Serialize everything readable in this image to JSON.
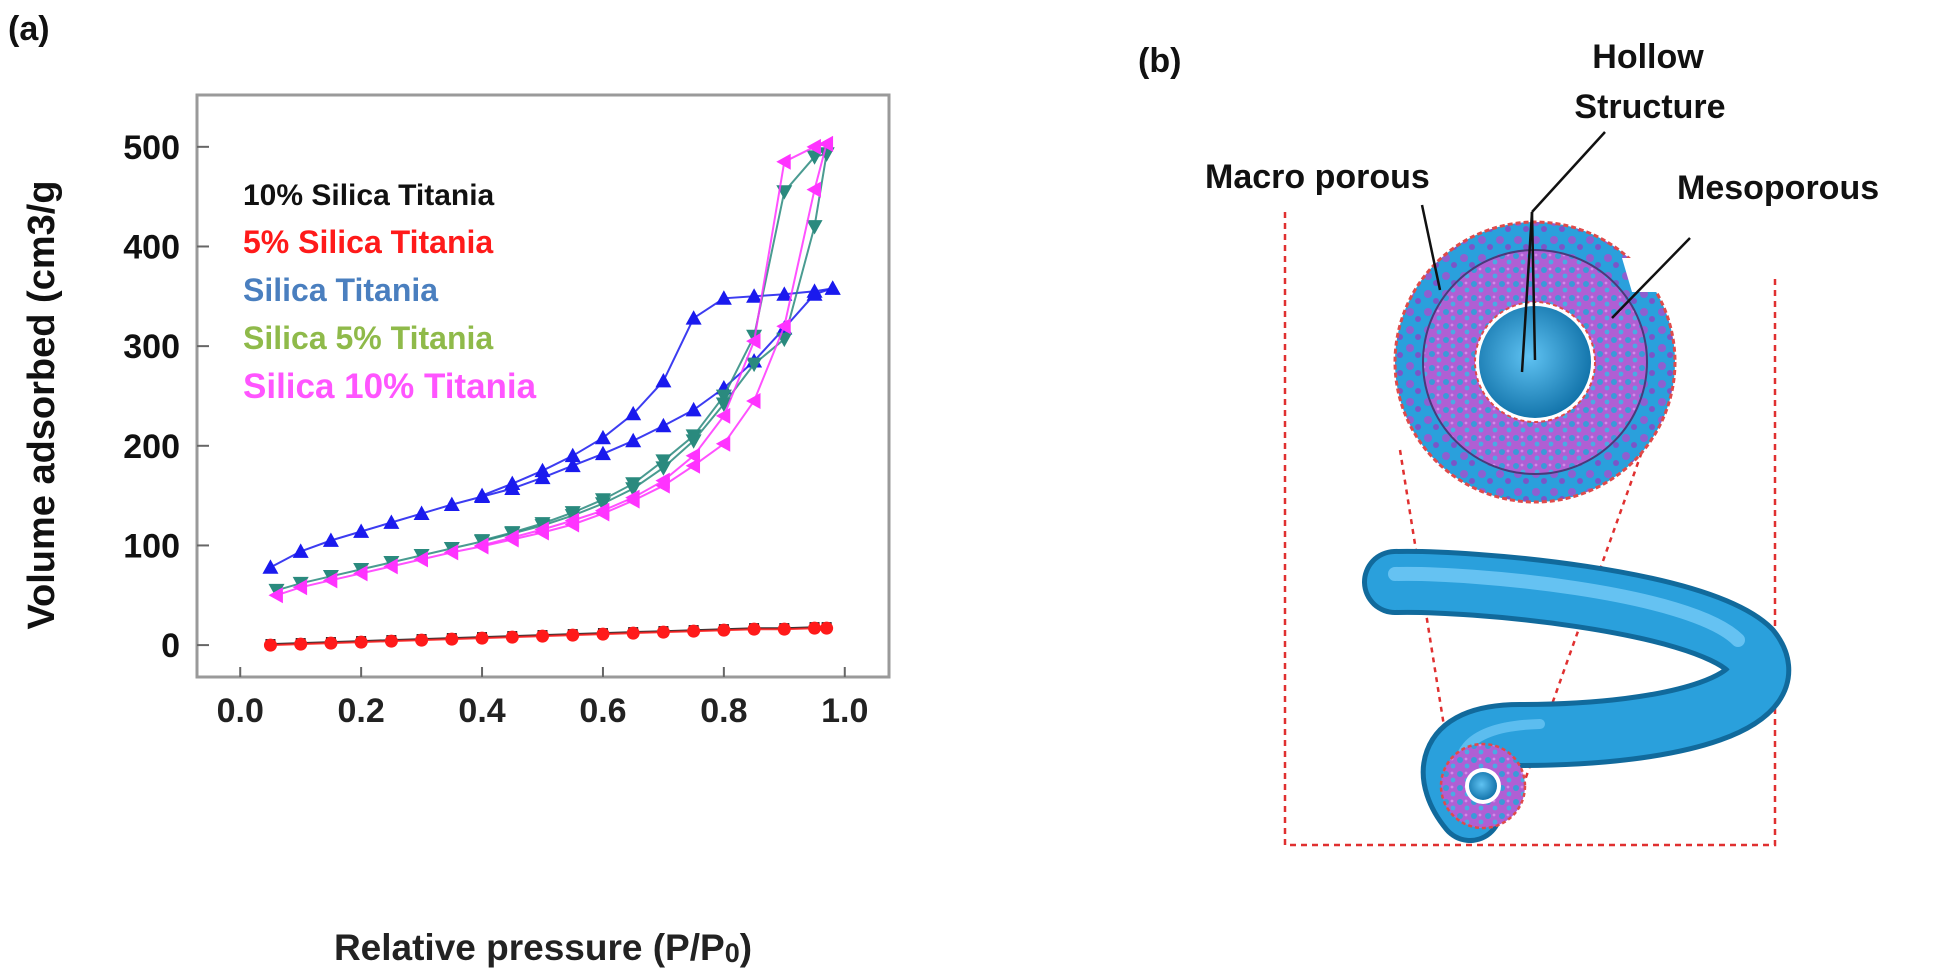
{
  "panel_a": {
    "label": "(a)",
    "chart_data": {
      "type": "line",
      "xlabel": "Relative pressure (P/P",
      "xlabel_sub": "0",
      "xlabel_close": ")",
      "ylabel": "Volume adsorbed (cm3/g",
      "xlim": [
        -0.05,
        1.05
      ],
      "ylim": [
        -30,
        550
      ],
      "x_ticks": [
        "0.0",
        "0.2",
        "0.4",
        "0.6",
        "0.8",
        "1.0"
      ],
      "x_tick_values": [
        0.0,
        0.2,
        0.4,
        0.6,
        0.8,
        1.0
      ],
      "y_ticks": [
        "0",
        "100",
        "200",
        "300",
        "400",
        "500"
      ],
      "y_tick_values": [
        0,
        100,
        200,
        300,
        400,
        500
      ],
      "legend_placement": "top-left",
      "series": [
        {
          "name": "10% Silica Titania",
          "color": "#111111",
          "marker": "square",
          "branches": [
            {
              "x": [
                0.05,
                0.1,
                0.15,
                0.2,
                0.25,
                0.3,
                0.35,
                0.4,
                0.45,
                0.5,
                0.55,
                0.6,
                0.65,
                0.7,
                0.75,
                0.8,
                0.85,
                0.9,
                0.95,
                0.97
              ],
              "y": [
                1,
                2,
                3,
                4,
                5,
                6,
                7,
                8,
                9,
                10,
                11,
                12,
                13,
                14,
                15,
                16,
                17,
                17,
                18,
                18
              ]
            }
          ]
        },
        {
          "name": "5% Silica Titania",
          "color": "#ff1a1a",
          "marker": "circle",
          "branches": [
            {
              "x": [
                0.05,
                0.1,
                0.15,
                0.2,
                0.25,
                0.3,
                0.35,
                0.4,
                0.45,
                0.5,
                0.55,
                0.6,
                0.65,
                0.7,
                0.75,
                0.8,
                0.85,
                0.9,
                0.95,
                0.97
              ],
              "y": [
                0,
                1,
                2,
                3,
                4,
                5,
                6,
                7,
                8,
                9,
                10,
                11,
                12,
                13,
                14,
                15,
                16,
                16,
                17,
                17
              ]
            }
          ]
        },
        {
          "name": "Silica Titania",
          "color": "#1a1aee",
          "marker": "triangle-up",
          "branches": [
            {
              "x": [
                0.05,
                0.1,
                0.15,
                0.2,
                0.25,
                0.3,
                0.35,
                0.4,
                0.45,
                0.5,
                0.55,
                0.6,
                0.65,
                0.7,
                0.75,
                0.8,
                0.85,
                0.9,
                0.95,
                0.98
              ],
              "y": [
                78,
                94,
                105,
                114,
                123,
                132,
                141,
                149,
                157,
                168,
                180,
                192,
                205,
                220,
                236,
                258,
                285,
                318,
                352,
                358
              ]
            },
            {
              "x": [
                0.98,
                0.95,
                0.9,
                0.85,
                0.8,
                0.75,
                0.7,
                0.65,
                0.6,
                0.55,
                0.5,
                0.45,
                0.4
              ],
              "y": [
                358,
                355,
                352,
                350,
                348,
                328,
                265,
                232,
                208,
                190,
                175,
                162,
                150
              ]
            }
          ]
        },
        {
          "name": "Silica 5% Titania",
          "color": "#2a8a7e",
          "marker": "triangle-down",
          "branches": [
            {
              "x": [
                0.06,
                0.1,
                0.15,
                0.2,
                0.25,
                0.3,
                0.35,
                0.4,
                0.45,
                0.5,
                0.55,
                0.6,
                0.65,
                0.7,
                0.75,
                0.8,
                0.85,
                0.9,
                0.95,
                0.97
              ],
              "y": [
                55,
                62,
                69,
                76,
                83,
                90,
                97,
                104,
                112,
                120,
                130,
                142,
                157,
                178,
                205,
                242,
                282,
                307,
                420,
                493
              ]
            },
            {
              "x": [
                0.97,
                0.95,
                0.9,
                0.85,
                0.8,
                0.75,
                0.7,
                0.65,
                0.6,
                0.55,
                0.5,
                0.45,
                0.4
              ],
              "y": [
                493,
                490,
                455,
                310,
                250,
                210,
                185,
                162,
                146,
                133,
                122,
                113,
                105
              ]
            }
          ]
        },
        {
          "name": "Silica 10% Titania",
          "color": "#ff33ff",
          "marker": "triangle-left",
          "branches": [
            {
              "x": [
                0.06,
                0.1,
                0.15,
                0.2,
                0.25,
                0.3,
                0.35,
                0.4,
                0.45,
                0.5,
                0.55,
                0.6,
                0.65,
                0.7,
                0.75,
                0.8,
                0.85,
                0.9,
                0.95,
                0.97
              ],
              "y": [
                50,
                58,
                65,
                72,
                79,
                86,
                93,
                99,
                106,
                113,
                121,
                132,
                145,
                160,
                180,
                202,
                245,
                320,
                457,
                503
              ]
            },
            {
              "x": [
                0.97,
                0.95,
                0.9,
                0.85,
                0.8,
                0.75,
                0.7,
                0.65,
                0.6,
                0.55,
                0.5,
                0.45,
                0.4
              ],
              "y": [
                503,
                500,
                485,
                305,
                230,
                190,
                165,
                148,
                135,
                125,
                116,
                108,
                100
              ]
            }
          ]
        }
      ]
    }
  },
  "panel_b": {
    "label": "(b)",
    "labels": {
      "hollow_line1": "Hollow",
      "hollow_line2": "Structure",
      "macro": "Macro porous",
      "meso": "Mesoporous"
    },
    "colors": {
      "tube": "#2aa0dc",
      "tube_dark": "#1a7fb8",
      "meso_fill": "#b36fd6",
      "outline": "#e04a4a",
      "frame": "#e03030"
    }
  }
}
